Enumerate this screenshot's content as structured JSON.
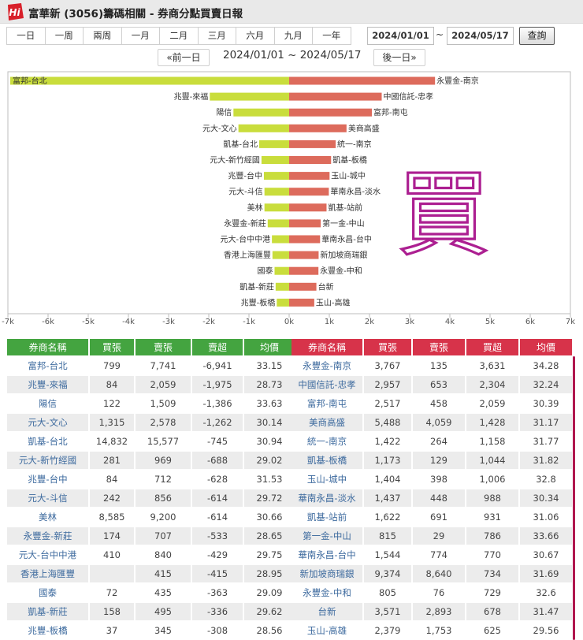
{
  "header": {
    "title": "富華新 (3056)籌碼相關 - 券商分點買賣日報",
    "logo_text": "Hi"
  },
  "periods": [
    "一日",
    "一周",
    "兩周",
    "一月",
    "二月",
    "三月",
    "六月",
    "九月",
    "一年"
  ],
  "date_range": {
    "start": "2024/01/01",
    "tilde": "~",
    "end": "2024/05/17",
    "query_label": "查詢",
    "display": "2024/01/01 ~ 2024/05/17",
    "prev_label": "«前一日",
    "next_label": "後一日»"
  },
  "annotation_text": "買",
  "colors": {
    "sell_bar": "#c9dd3c",
    "buy_bar": "#dd6b5c",
    "left_header": "#44a440",
    "right_header": "#d7334a",
    "annotation": "#a8148c"
  },
  "chart_data": {
    "type": "bar",
    "orientation": "horizontal",
    "xlim": [
      -7000,
      7000
    ],
    "xticks": [
      "-7k",
      "-6k",
      "-5k",
      "-4k",
      "-3k",
      "-2k",
      "-1k",
      "0k",
      "1k",
      "2k",
      "3k",
      "4k",
      "5k",
      "6k",
      "7k"
    ],
    "series": [
      {
        "labels": [
          "富邦-台北",
          "兆豐-來福",
          "陽信",
          "元大-文心",
          "凱基-台北",
          "元大-新竹經國",
          "兆豐-台中",
          "元大-斗信",
          "美林",
          "永豐金-新莊",
          "元大-台中中港",
          "香港上海匯豐",
          "國泰",
          "凱基-新莊",
          "兆豐-板橋"
        ],
        "values": [
          -6941,
          -1975,
          -1386,
          -1262,
          -745,
          -688,
          -628,
          -614,
          -614,
          -533,
          -429,
          -415,
          -363,
          -336,
          -308
        ]
      },
      {
        "labels": [
          "永豐金-南京",
          "中國信託-忠孝",
          "富邦-南屯",
          "美商高盛",
          "統一-南京",
          "凱基-板橋",
          "玉山-城中",
          "華南永昌-淡水",
          "凱基-站前",
          "第一金-中山",
          "華南永昌-台中",
          "新加坡商瑞銀",
          "永豐金-中和",
          "台新",
          "玉山-高雄"
        ],
        "values": [
          3631,
          2304,
          2059,
          1428,
          1158,
          1044,
          1006,
          988,
          931,
          786,
          770,
          734,
          729,
          678,
          625
        ]
      }
    ]
  },
  "table": {
    "left_headers": [
      "券商名稱",
      "買張",
      "賣張",
      "賣超",
      "均價"
    ],
    "right_headers": [
      "券商名稱",
      "買張",
      "賣張",
      "買超",
      "均價"
    ],
    "left_rows": [
      [
        "富邦-台北",
        "799",
        "7,741",
        "-6,941",
        "33.15"
      ],
      [
        "兆豐-來福",
        "84",
        "2,059",
        "-1,975",
        "28.73"
      ],
      [
        "陽信",
        "122",
        "1,509",
        "-1,386",
        "33.63"
      ],
      [
        "元大-文心",
        "1,315",
        "2,578",
        "-1,262",
        "30.14"
      ],
      [
        "凱基-台北",
        "14,832",
        "15,577",
        "-745",
        "30.94"
      ],
      [
        "元大-新竹經國",
        "281",
        "969",
        "-688",
        "29.02"
      ],
      [
        "兆豐-台中",
        "84",
        "712",
        "-628",
        "31.53"
      ],
      [
        "元大-斗信",
        "242",
        "856",
        "-614",
        "29.72"
      ],
      [
        "美林",
        "8,585",
        "9,200",
        "-614",
        "30.66"
      ],
      [
        "永豐金-新莊",
        "174",
        "707",
        "-533",
        "28.65"
      ],
      [
        "元大-台中中港",
        "410",
        "840",
        "-429",
        "29.75"
      ],
      [
        "香港上海匯豐",
        "",
        "415",
        "-415",
        "28.95"
      ],
      [
        "國泰",
        "72",
        "435",
        "-363",
        "29.09"
      ],
      [
        "凱基-新莊",
        "158",
        "495",
        "-336",
        "29.62"
      ],
      [
        "兆豐-板橋",
        "37",
        "345",
        "-308",
        "28.56"
      ]
    ],
    "right_rows": [
      [
        "永豐金-南京",
        "3,767",
        "135",
        "3,631",
        "34.28"
      ],
      [
        "中國信託-忠孝",
        "2,957",
        "653",
        "2,304",
        "32.24"
      ],
      [
        "富邦-南屯",
        "2,517",
        "458",
        "2,059",
        "30.39"
      ],
      [
        "美商高盛",
        "5,488",
        "4,059",
        "1,428",
        "31.17"
      ],
      [
        "統一-南京",
        "1,422",
        "264",
        "1,158",
        "31.77"
      ],
      [
        "凱基-板橋",
        "1,173",
        "129",
        "1,044",
        "31.82"
      ],
      [
        "玉山-城中",
        "1,404",
        "398",
        "1,006",
        "32.8"
      ],
      [
        "華南永昌-淡水",
        "1,437",
        "448",
        "988",
        "30.34"
      ],
      [
        "凱基-站前",
        "1,622",
        "691",
        "931",
        "31.06"
      ],
      [
        "第一金-中山",
        "815",
        "29",
        "786",
        "33.66"
      ],
      [
        "華南永昌-台中",
        "1,544",
        "774",
        "770",
        "30.67"
      ],
      [
        "新加坡商瑞銀",
        "9,374",
        "8,640",
        "734",
        "31.69"
      ],
      [
        "永豐金-中和",
        "805",
        "76",
        "729",
        "32.6"
      ],
      [
        "台新",
        "3,571",
        "2,893",
        "678",
        "31.47"
      ],
      [
        "玉山-高雄",
        "2,379",
        "1,753",
        "625",
        "29.56"
      ]
    ]
  }
}
